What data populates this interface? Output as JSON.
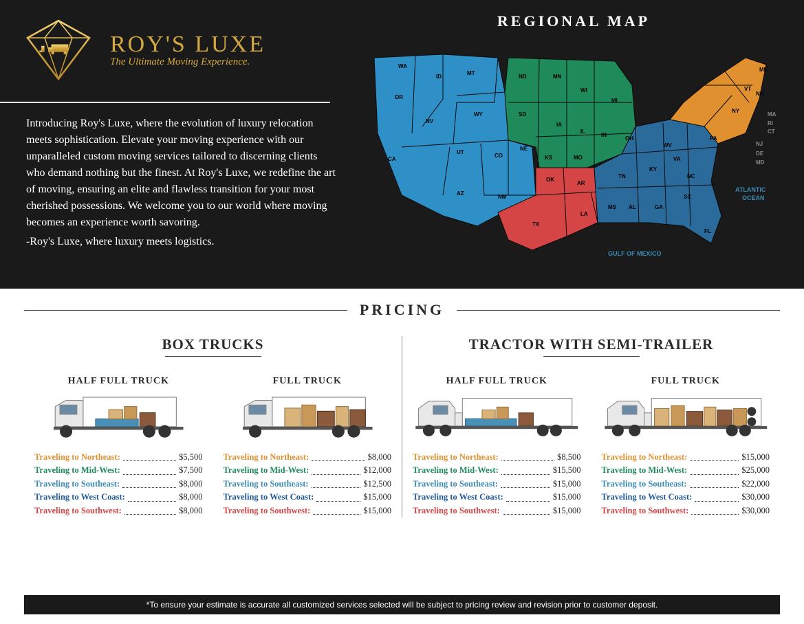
{
  "brand": {
    "name": "ROY'S LUXE",
    "tagline": "The Ultimate Moving Experience.",
    "gold": "#d4a841"
  },
  "intro": {
    "body": "Introducing Roy's Luxe, where the evolution of luxury relocation meets sophistication.  Elevate your moving experience with our unparalleled custom moving services tailored to discerning clients who demand nothing but the finest.  At Roy's Luxe, we redefine the art of moving, ensuring an elite and flawless transition for your most cherished possessions.  We welcome you to our world where moving becomes an experience worth savoring.",
    "signoff": "-Roy's Luxe, where luxury meets logistics."
  },
  "map": {
    "title": "REGIONAL MAP",
    "ocean_atlantic": "ATLANTIC OCEAN",
    "ocean_gulf": "GULF OF MEXICO",
    "region_colors": {
      "west": "#2f8fc7",
      "midwest": "#1f8a5a",
      "south_central": "#d64545",
      "northeast": "#e0902f",
      "southeast": "#2b6b9c"
    }
  },
  "pricing": {
    "title": "PRICING",
    "destinations": [
      {
        "label": "Traveling to Northeast:",
        "color": "#e0902f"
      },
      {
        "label": "Traveling to Mid-West:",
        "color": "#1f8a5a"
      },
      {
        "label": "Traveling to Southeast:",
        "color": "#3c8bb5"
      },
      {
        "label": "Traveling to West Coast:",
        "color": "#1f5a9c"
      },
      {
        "label": "Traveling to Southwest:",
        "color": "#d64545"
      }
    ],
    "groups": [
      {
        "title": "BOX TRUCKS",
        "trucks": [
          {
            "label": "HALF FULL TRUCK",
            "type": "box-half",
            "prices": [
              "$5,500",
              "$7,500",
              "$8,000",
              "$8,000",
              "$8,000"
            ]
          },
          {
            "label": "FULL TRUCK",
            "type": "box-full",
            "prices": [
              "$8,000",
              "$12,000",
              "$12,500",
              "$15,000",
              "$15,000"
            ]
          }
        ]
      },
      {
        "title": "TRACTOR WITH SEMI-TRAILER",
        "trucks": [
          {
            "label": "HALF FULL TRUCK",
            "type": "semi-half",
            "prices": [
              "$8,500",
              "$15,500",
              "$15,000",
              "$15,000",
              "$15,000"
            ]
          },
          {
            "label": "FULL TRUCK",
            "type": "semi-full",
            "prices": [
              "$15,000",
              "$25,000",
              "$22,000",
              "$30,000",
              "$30,000"
            ]
          }
        ]
      }
    ]
  },
  "footer": {
    "text": "*To ensure your estimate is accurate all customized services selected will be subject to pricing review and revision prior to customer deposit."
  },
  "truck_colors": {
    "body": "#e8e8e8",
    "trailer": "#ffffff",
    "outline": "#888",
    "wheel": "#333",
    "box1": "#d9b37a",
    "box2": "#c89858",
    "furn": "#8b5a3c",
    "mat": "#4a8fb5"
  }
}
